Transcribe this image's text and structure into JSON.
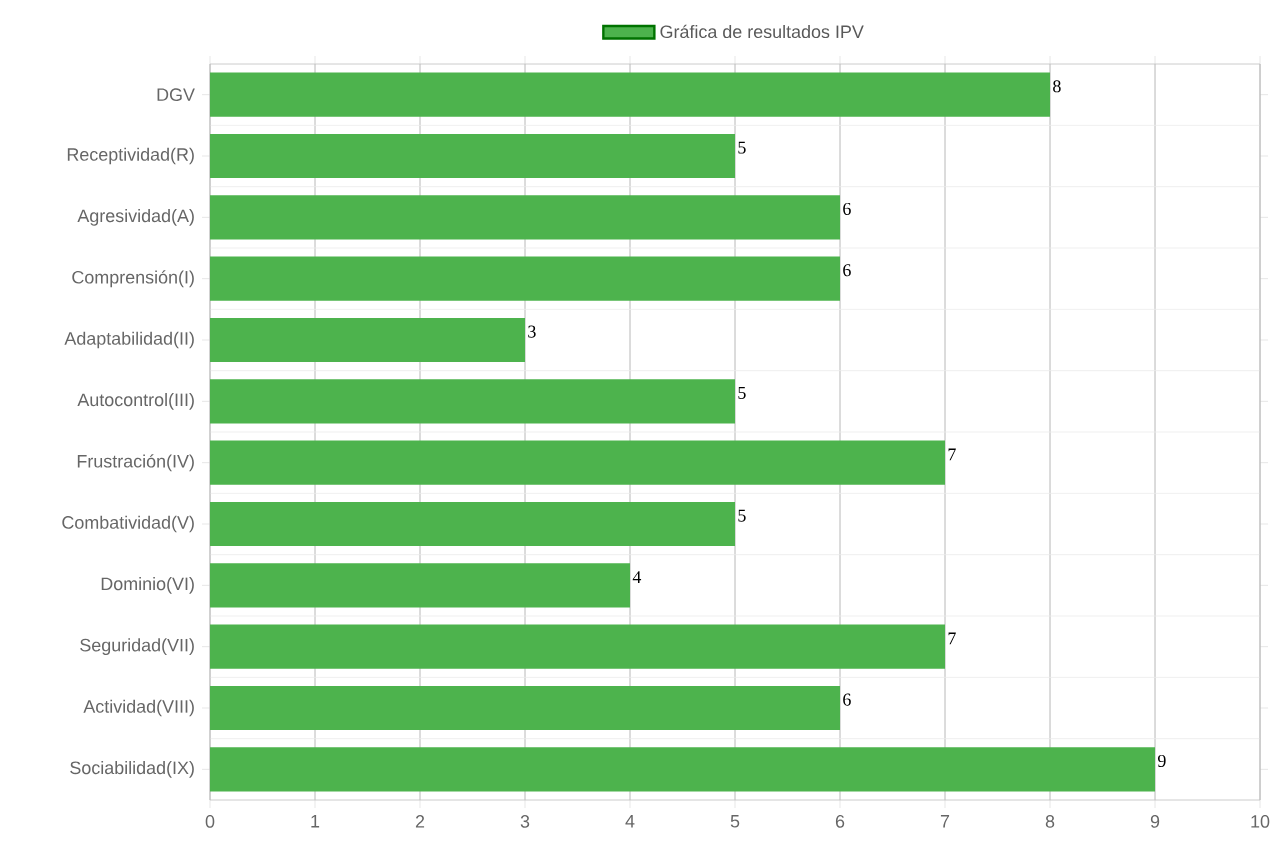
{
  "chart_data": {
    "type": "bar",
    "orientation": "horizontal",
    "categories": [
      "DGV",
      "Receptividad(R)",
      "Agresividad(A)",
      "Comprensión(I)",
      "Adaptabilidad(II)",
      "Autocontrol(III)",
      "Frustración(IV)",
      "Combatividad(V)",
      "Dominio(VI)",
      "Seguridad(VII)",
      "Actividad(VIII)",
      "Sociabilidad(IX)"
    ],
    "series": [
      {
        "name": "Gráfica de resultados IPV",
        "color": "#4db34d",
        "values": [
          8,
          5,
          6,
          6,
          3,
          5,
          7,
          5,
          4,
          7,
          6,
          9
        ]
      }
    ],
    "xlim": [
      0,
      10
    ],
    "xticks": [
      0,
      1,
      2,
      3,
      4,
      5,
      6,
      7,
      8,
      9,
      10
    ],
    "grid": true,
    "legend": "top",
    "data_labels": true
  }
}
